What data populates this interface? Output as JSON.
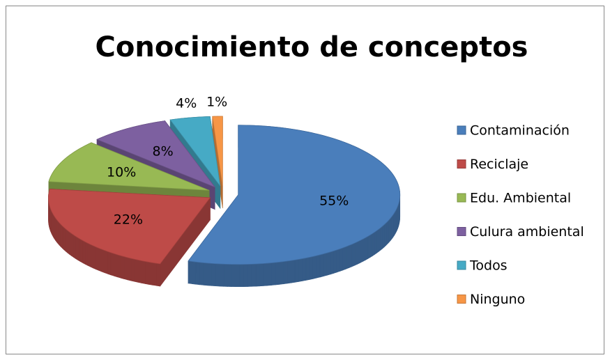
{
  "chart_data": {
    "type": "pie",
    "title": "Conocimiento de conceptos",
    "categories": [
      "Contaminación",
      "Reciclaje",
      "Edu. Ambiental",
      "Culura ambiental",
      "Todos",
      "Ninguno"
    ],
    "values": [
      55,
      22,
      10,
      8,
      4,
      1
    ],
    "value_labels": [
      "55%",
      "22%",
      "10%",
      "8%",
      "4%",
      "1%"
    ],
    "colors": [
      "#4a7ebb",
      "#be4b48",
      "#98b954",
      "#7d60a0",
      "#46aac5",
      "#f79646"
    ],
    "legend": "right"
  }
}
